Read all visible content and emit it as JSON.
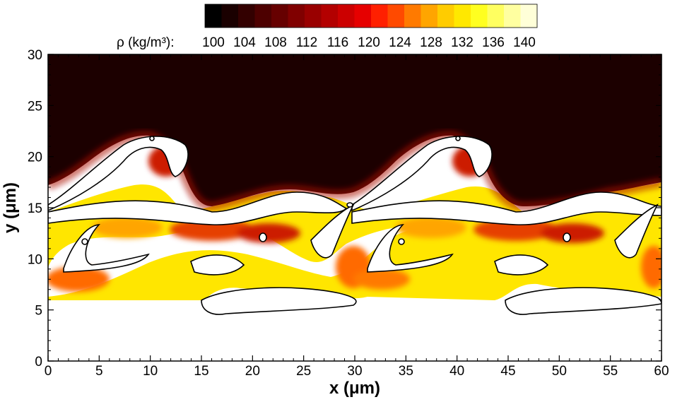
{
  "chart_data": {
    "type": "contour",
    "xlabel": "x (μm)",
    "ylabel": "y (μm)",
    "xlim": [
      0,
      60
    ],
    "ylim": [
      0,
      30
    ],
    "x_ticks": [
      0,
      5,
      10,
      15,
      20,
      25,
      30,
      35,
      40,
      45,
      50,
      55,
      60
    ],
    "y_ticks": [
      0,
      5,
      10,
      15,
      20,
      25,
      30
    ],
    "colorbar": {
      "label": "ρ (kg/m³):",
      "tick_labels": [
        "100",
        "104",
        "108",
        "112",
        "116",
        "120",
        "124",
        "128",
        "132",
        "136",
        "140"
      ],
      "levels": [
        100,
        102,
        104,
        106,
        108,
        110,
        112,
        114,
        116,
        118,
        120,
        122,
        124,
        126,
        128,
        130,
        132,
        134,
        136,
        138,
        140
      ],
      "colors": [
        "#000000",
        "#1a0000",
        "#330000",
        "#4d0000",
        "#660000",
        "#800000",
        "#990000",
        "#b30000",
        "#cc0000",
        "#e60000",
        "#ff2000",
        "#ff4a00",
        "#ff7a00",
        "#ffa500",
        "#ffcc00",
        "#ffe800",
        "#ffff20",
        "#ffff60",
        "#ffffa0",
        "#ffffd8"
      ]
    },
    "colors": {
      "upper_fluid": "#1c0000",
      "lower_fluid": "#ffffff",
      "contour_line": "#000000"
    }
  }
}
